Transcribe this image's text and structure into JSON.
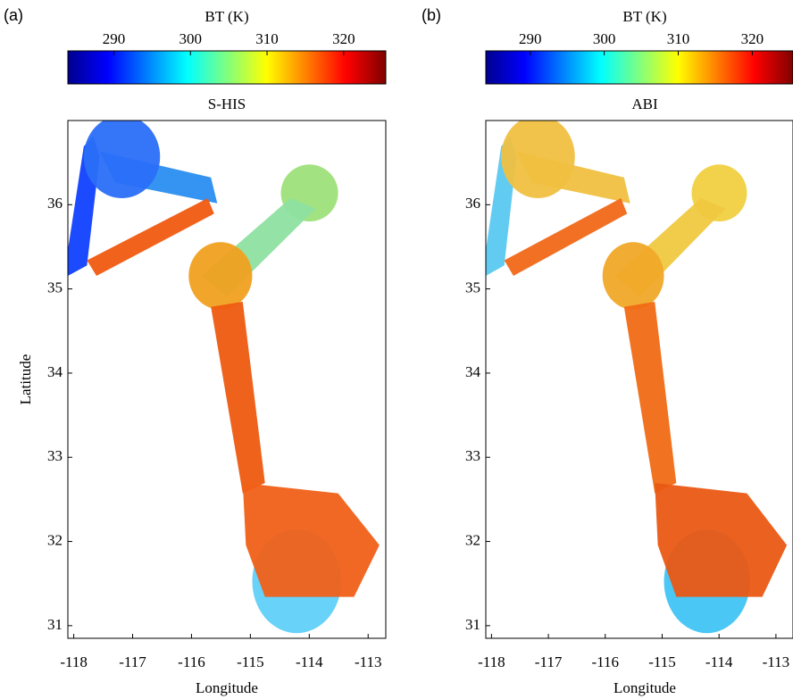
{
  "chart_data": [
    {
      "type": "heatmap",
      "panel_label": "(a)",
      "colorbar_label": "BT (K)",
      "title": "S-HIS",
      "colormap": "jet",
      "clim": [
        284,
        325.5
      ],
      "cticks": [
        290,
        300,
        310,
        320
      ],
      "xlabel": "Longitude",
      "ylabel": "Latitude",
      "xlim": [
        -118.1,
        -112.7
      ],
      "xticks": [
        -118,
        -117,
        -116,
        -115,
        -114,
        -113
      ],
      "ylim": [
        30.85,
        37.0
      ],
      "yticks": [
        31,
        32,
        33,
        34,
        35,
        36
      ]
    },
    {
      "type": "heatmap",
      "panel_label": "(b)",
      "colorbar_label": "BT (K)",
      "title": "ABI",
      "colormap": "jet",
      "clim": [
        284,
        325.5
      ],
      "cticks": [
        290,
        300,
        310,
        320
      ],
      "xlabel": "Longitude",
      "xlim": [
        -118.1,
        -112.7
      ],
      "xticks": [
        -118,
        -117,
        -116,
        -115,
        -114,
        -113
      ],
      "ylim": [
        30.85,
        37.0
      ],
      "yticks": [
        31,
        32,
        33,
        34,
        35,
        36
      ]
    }
  ]
}
